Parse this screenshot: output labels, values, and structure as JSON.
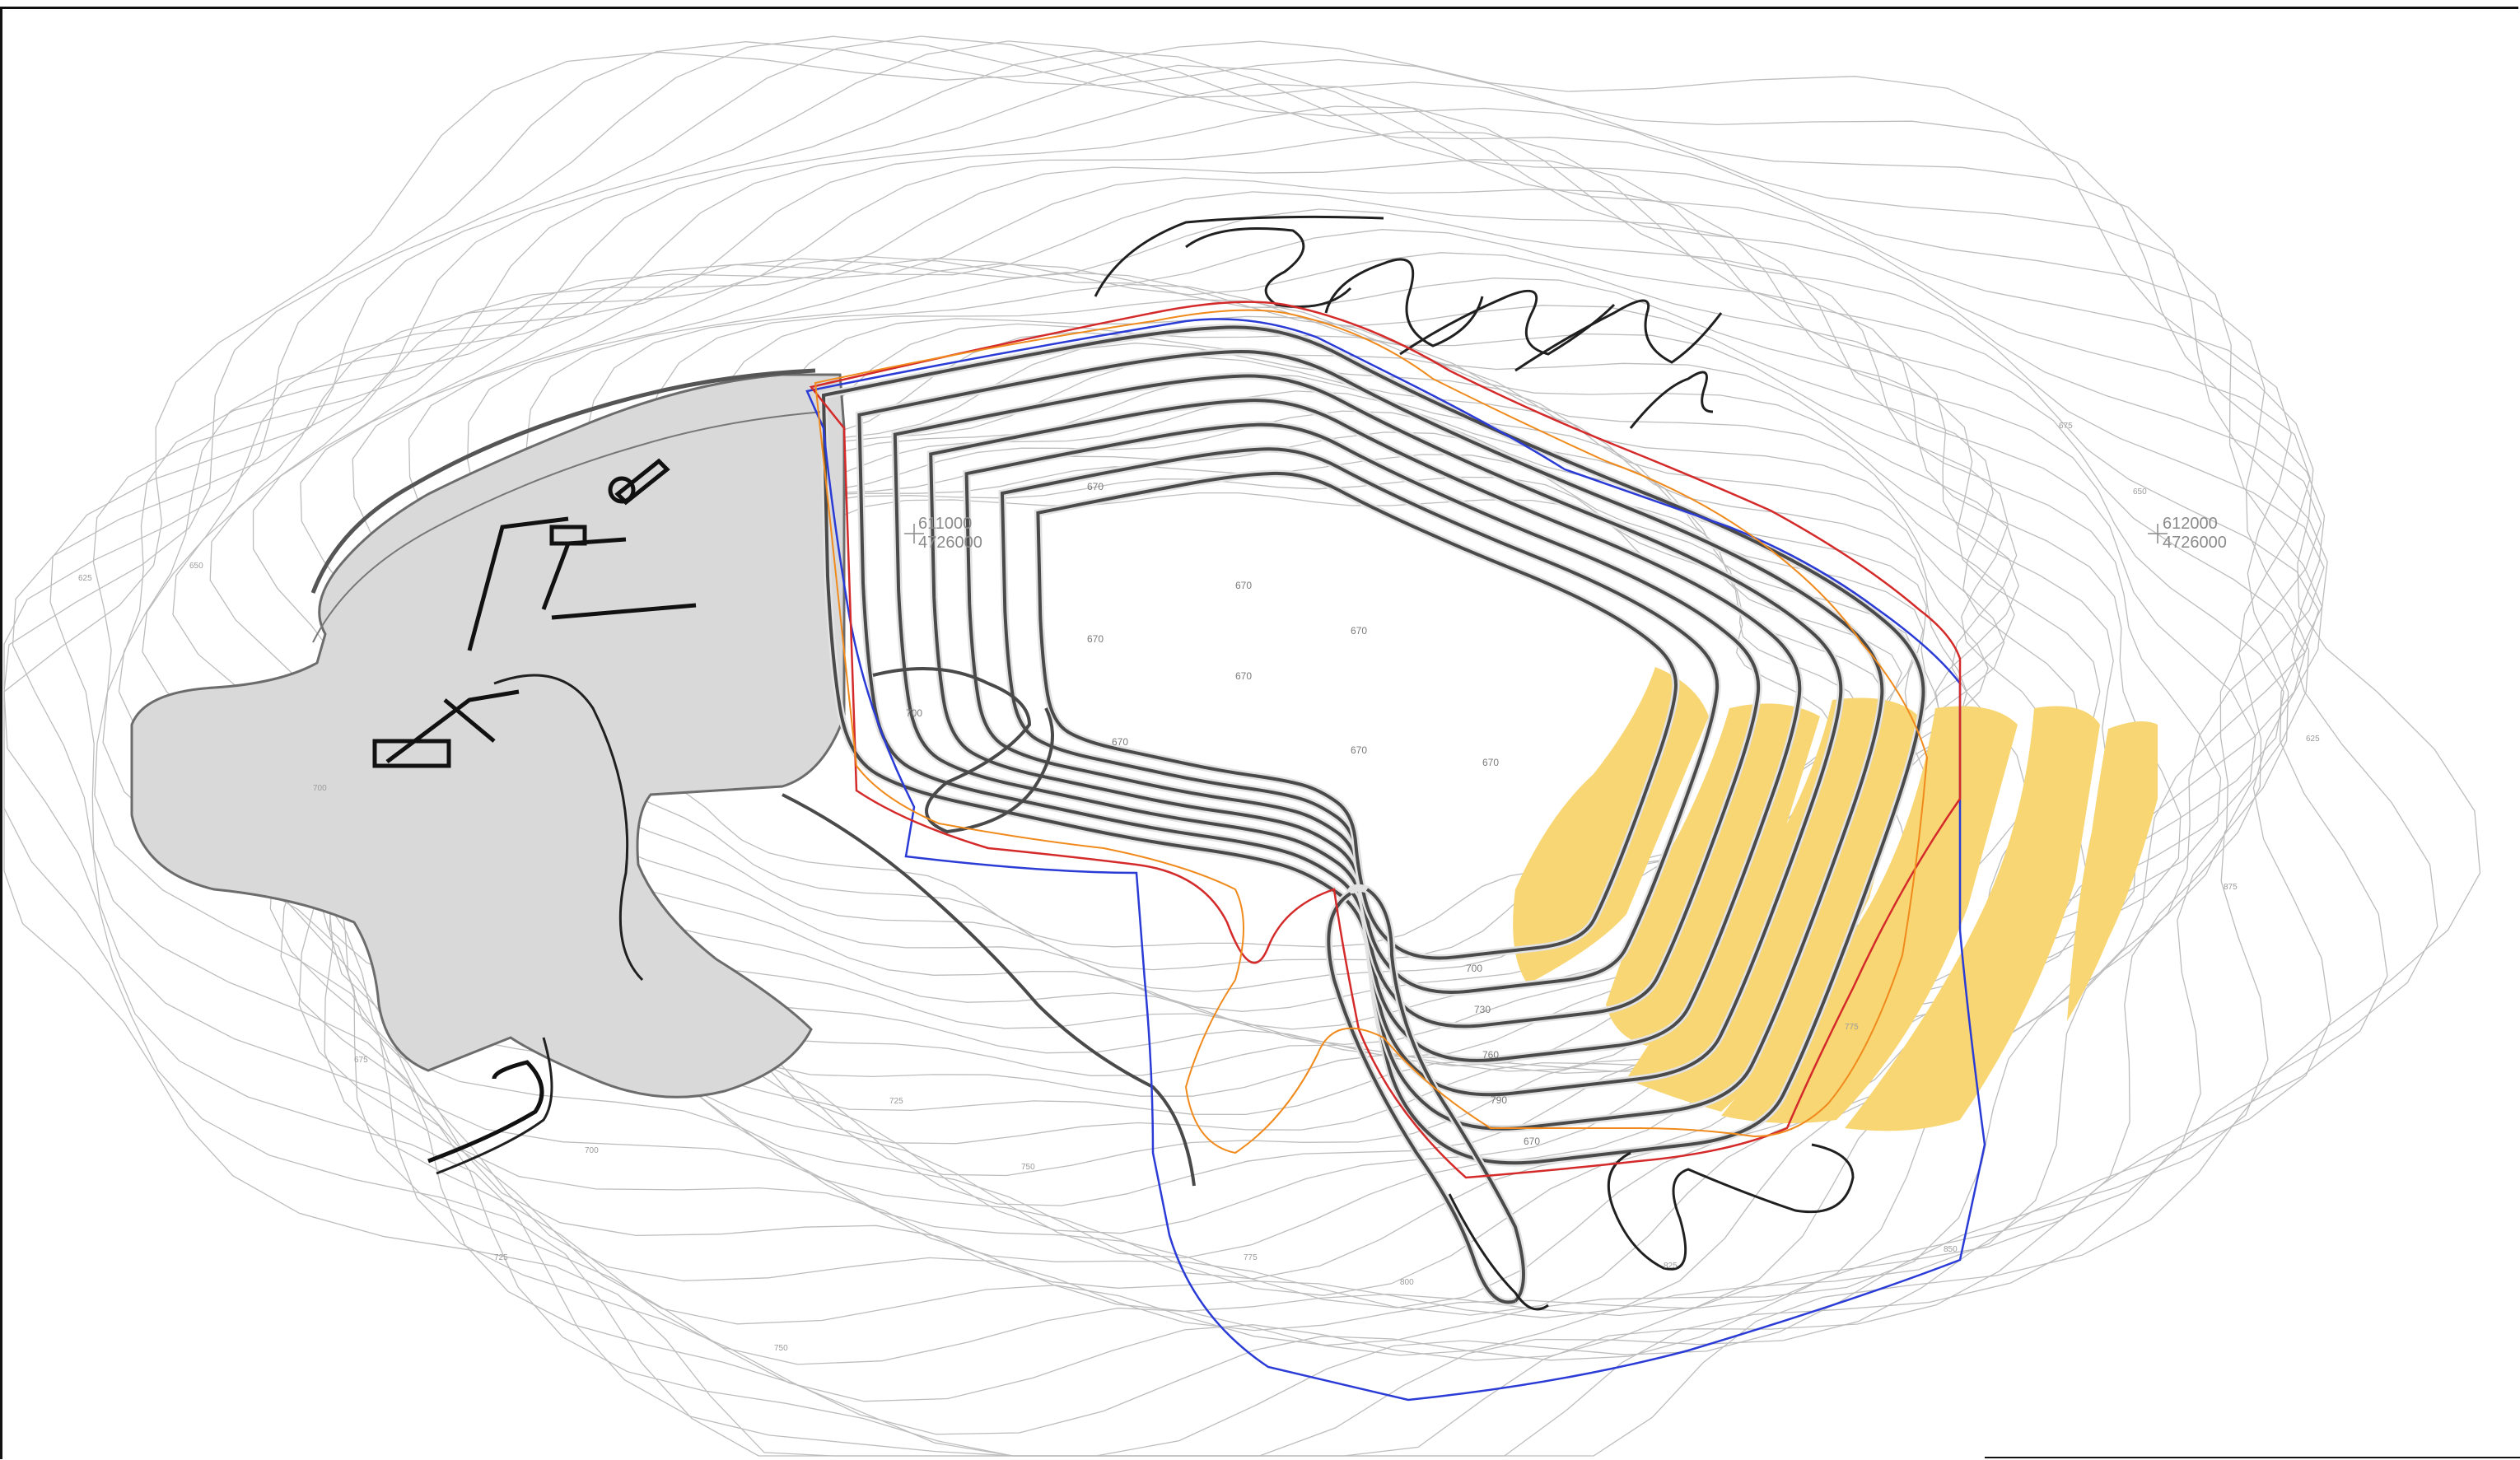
{
  "map": {
    "coordinate_marks": [
      {
        "id": "grid-mark-611000",
        "easting": "611000",
        "northing": "4726000"
      },
      {
        "id": "grid-mark-612000",
        "easting": "612000",
        "northing": "4726000"
      }
    ],
    "layers": {
      "existing_facilities": {
        "color": "#d9d9d9"
      },
      "phase_boundary_red": {
        "color": "#d42a2a"
      },
      "boundary_orange": {
        "color": "#f08a1c"
      },
      "permit_boundary_blue": {
        "color": "#2a3bd6"
      },
      "highlight_zones": {
        "color": "#f8d674"
      }
    },
    "elevation_labels": [
      "670",
      "670",
      "670",
      "670",
      "670",
      "670",
      "670",
      "700",
      "730",
      "760",
      "790",
      "670",
      "700",
      "670"
    ],
    "contour_labels": [
      "625",
      "650",
      "675",
      "700",
      "725",
      "750",
      "775",
      "800",
      "825",
      "850",
      "875"
    ]
  }
}
